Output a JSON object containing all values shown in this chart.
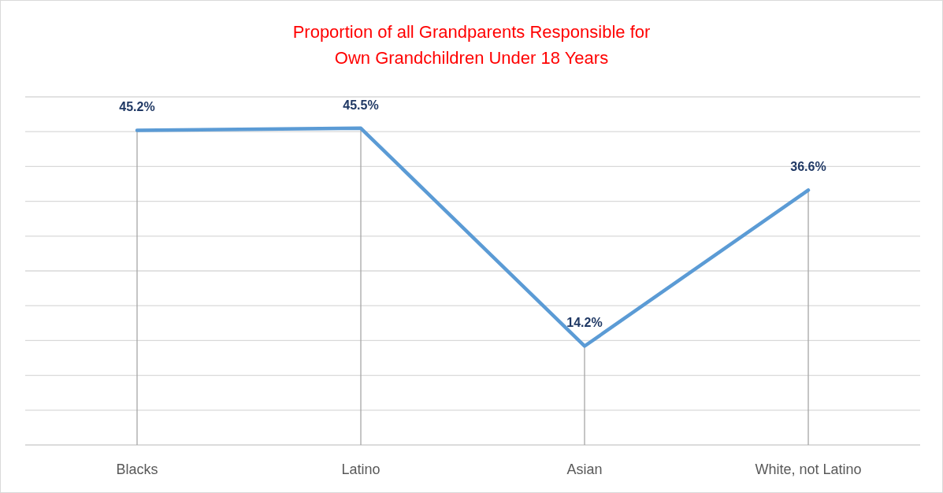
{
  "chart_data": {
    "type": "line",
    "title": "Proportion of all Grandparents Responsible for\nOwn Grandchildren Under 18 Years",
    "categories": [
      "Blacks",
      "Latino",
      "Asian",
      "White, not Latino"
    ],
    "series": [
      {
        "color": "#5b9bd5",
        "values": [
          45.2,
          45.5,
          14.2,
          36.6
        ],
        "value_labels": [
          "45.2%",
          "45.5%",
          "14.2%",
          "36.6%"
        ]
      }
    ],
    "ylim": [
      0,
      50
    ],
    "yticks": [
      {
        "value": 0,
        "label": null
      },
      {
        "value": 5,
        "label": null
      },
      {
        "value": 10,
        "label": null
      },
      {
        "value": 15,
        "label": null
      },
      {
        "value": 20,
        "label": null
      },
      {
        "value": 25,
        "label": null
      },
      {
        "value": 30,
        "label": null
      },
      {
        "value": 35,
        "label": null
      },
      {
        "value": 40,
        "label": null
      },
      {
        "value": 45,
        "label": null
      },
      {
        "value": 50,
        "label": null
      }
    ],
    "grid": true,
    "tick_labels": "x",
    "marker": "none",
    "line_style": "solid"
  }
}
